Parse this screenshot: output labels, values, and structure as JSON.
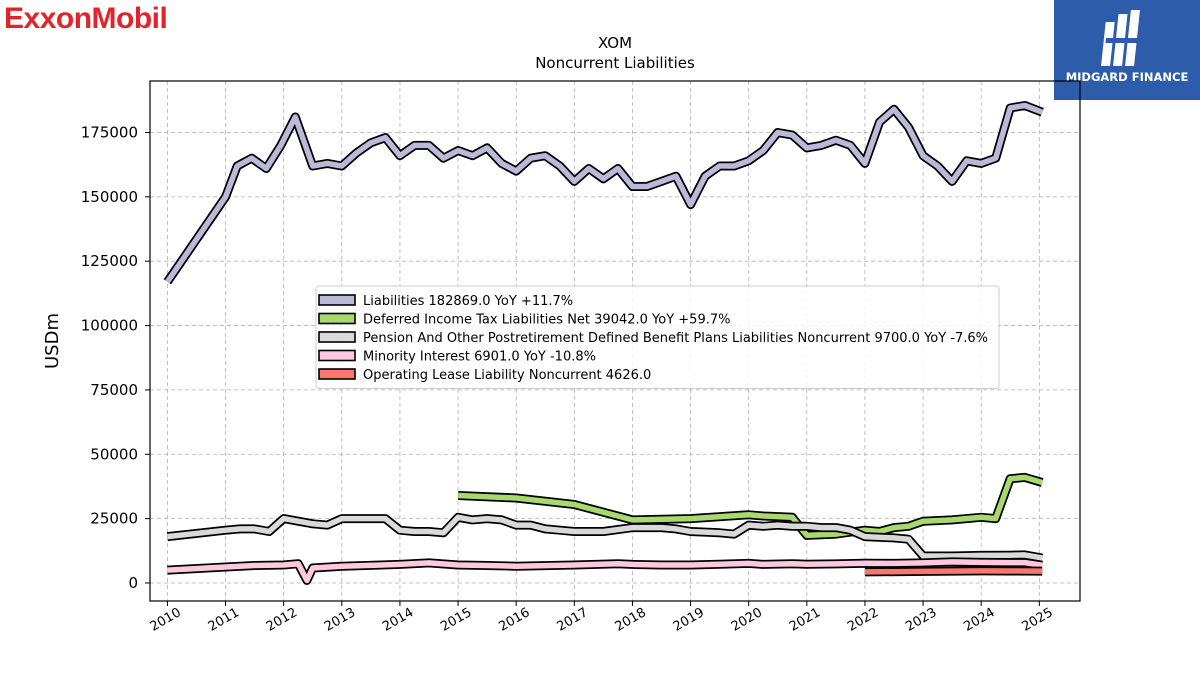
{
  "branding": {
    "left_logo": "ExxonMobil",
    "right_logo": "MIDGARD FINANCE",
    "left_color": "#e1242c",
    "right_bg": "#2d5caa"
  },
  "chart_data": {
    "type": "line",
    "title": "XOM",
    "subtitle": "Noncurrent  Liabilities",
    "ylabel": "USDm",
    "xlabel": "",
    "xlim": [
      2009.7,
      2025.7
    ],
    "ylim": [
      -7000,
      195000
    ],
    "yticks": [
      0,
      25000,
      50000,
      75000,
      100000,
      125000,
      150000,
      175000
    ],
    "xticks": [
      2010,
      2011,
      2012,
      2013,
      2014,
      2015,
      2016,
      2017,
      2018,
      2019,
      2020,
      2021,
      2022,
      2023,
      2024,
      2025
    ],
    "grid": true,
    "legend_position": "center",
    "series": [
      {
        "name": "Liabilities",
        "legend": "Liabilities  182869.0 YoY +11.7%",
        "color": "#bcb9d8",
        "x": [
          2010.0,
          2011.0,
          2011.2,
          2011.45,
          2011.7,
          2011.95,
          2012.2,
          2012.5,
          2012.75,
          2013.0,
          2013.25,
          2013.5,
          2013.75,
          2014.0,
          2014.25,
          2014.5,
          2014.75,
          2015.0,
          2015.25,
          2015.5,
          2015.75,
          2016.0,
          2016.25,
          2016.5,
          2016.75,
          2017.0,
          2017.25,
          2017.5,
          2017.75,
          2018.0,
          2018.25,
          2018.5,
          2018.75,
          2019.0,
          2019.25,
          2019.5,
          2019.75,
          2020.0,
          2020.25,
          2020.5,
          2020.75,
          2021.0,
          2021.25,
          2021.5,
          2021.75,
          2022.0,
          2022.25,
          2022.5,
          2022.75,
          2023.0,
          2023.25,
          2023.5,
          2023.75,
          2024.0,
          2024.25,
          2024.5,
          2024.75,
          2025.05
        ],
        "values": [
          117000,
          150000,
          162000,
          165000,
          161000,
          170000,
          181000,
          162000,
          163000,
          162000,
          167000,
          171000,
          173000,
          166000,
          170000,
          170000,
          165000,
          168000,
          166000,
          169000,
          163000,
          160000,
          165000,
          166000,
          162000,
          156000,
          161000,
          157000,
          161000,
          154000,
          154000,
          156000,
          158000,
          147000,
          158000,
          162000,
          162000,
          164000,
          168000,
          175000,
          174000,
          169000,
          170000,
          172000,
          170000,
          163000,
          179000,
          184000,
          177000,
          166000,
          162000,
          156000,
          164000,
          163000,
          165000,
          184500,
          185500,
          182869
        ]
      },
      {
        "name": "Deferred Income Tax Liabilities Net",
        "legend": "Deferred Income Tax Liabilities Net  39042.0 YoY +59.7%",
        "color": "#a9d86e",
        "x": [
          2015.0,
          2016.0,
          2017.0,
          2018.0,
          2019.0,
          2020.0,
          2020.25,
          2020.75,
          2021.0,
          2021.5,
          2022.0,
          2022.25,
          2022.5,
          2022.75,
          2023.0,
          2023.5,
          2024.0,
          2024.25,
          2024.5,
          2024.75,
          2025.05
        ],
        "values": [
          34000,
          33000,
          30500,
          24500,
          25000,
          26500,
          26000,
          25500,
          18500,
          19000,
          20500,
          20000,
          21500,
          22000,
          24000,
          24500,
          25500,
          25000,
          40500,
          41000,
          39042
        ]
      },
      {
        "name": "Pension And Other Postretirement Defined Benefit Plans Liabilities Noncurrent",
        "legend": "Pension And Other Postretirement Defined Benefit Plans Liabilities Noncurrent  9700.0 YoY -7.6%",
        "color": "#d9d9d9",
        "x": [
          2010.0,
          2011.0,
          2011.25,
          2011.5,
          2011.75,
          2012.0,
          2012.5,
          2012.75,
          2013.0,
          2013.25,
          2013.5,
          2013.75,
          2014.0,
          2014.25,
          2014.5,
          2014.75,
          2015.0,
          2015.25,
          2015.5,
          2015.75,
          2016.0,
          2016.25,
          2016.5,
          2016.75,
          2017.0,
          2017.5,
          2018.0,
          2018.5,
          2018.75,
          2019.0,
          2019.5,
          2019.75,
          2020.0,
          2020.25,
          2020.5,
          2020.75,
          2021.0,
          2021.25,
          2021.5,
          2021.75,
          2022.0,
          2022.5,
          2022.75,
          2023.0,
          2023.5,
          2024.0,
          2024.5,
          2024.75,
          2025.05
        ],
        "values": [
          18000,
          20500,
          21000,
          21000,
          20000,
          25000,
          23000,
          22500,
          25000,
          25000,
          25000,
          25000,
          20500,
          20000,
          20000,
          19500,
          25500,
          24500,
          25000,
          24500,
          22500,
          22500,
          21000,
          20500,
          20000,
          20000,
          21500,
          21500,
          21000,
          20000,
          19500,
          19000,
          22500,
          22000,
          22500,
          22000,
          22000,
          21500,
          21500,
          20500,
          18000,
          17500,
          17000,
          10500,
          10500,
          10700,
          10800,
          10900,
          9700
        ]
      },
      {
        "name": "Minority Interest",
        "legend": "Minority Interest  6901.0 YoY -10.8%",
        "color": "#ffc8dd",
        "x": [
          2010.0,
          2011.0,
          2011.5,
          2012.0,
          2012.25,
          2012.4,
          2012.5,
          2013.0,
          2014.0,
          2014.5,
          2015.0,
          2015.5,
          2016.0,
          2017.0,
          2017.75,
          2018.0,
          2018.5,
          2019.0,
          2019.5,
          2020.0,
          2020.25,
          2020.75,
          2021.0,
          2021.5,
          2022.0,
          2022.5,
          2023.0,
          2023.5,
          2024.0,
          2024.5,
          2024.75,
          2025.05
        ],
        "values": [
          5000,
          6200,
          6800,
          7000,
          7500,
          1000,
          5800,
          6500,
          7200,
          7800,
          7000,
          6800,
          6500,
          7000,
          7500,
          7200,
          7000,
          7000,
          7300,
          7600,
          7200,
          7500,
          7300,
          7400,
          7700,
          7600,
          7800,
          8200,
          8000,
          7900,
          7900,
          6901
        ]
      },
      {
        "name": "Operating Lease Liability Noncurrent",
        "legend": "Operating Lease Liability Noncurrent  4626.0",
        "color": "#f8766d",
        "x": [
          2022.0,
          2023.0,
          2023.5,
          2024.0,
          2024.5,
          2025.05
        ],
        "values": [
          4300,
          4500,
          4600,
          4700,
          4650,
          4626
        ]
      }
    ]
  }
}
